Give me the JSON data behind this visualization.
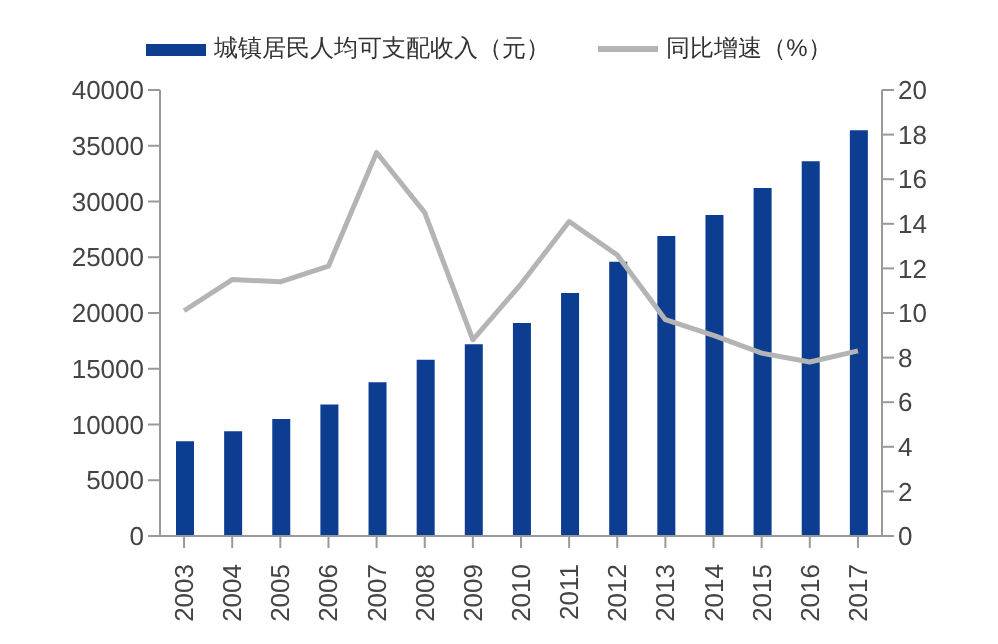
{
  "chart_data": {
    "type": "bar",
    "categories": [
      "2003",
      "2004",
      "2005",
      "2006",
      "2007",
      "2008",
      "2009",
      "2010",
      "2011",
      "2012",
      "2013",
      "2014",
      "2015",
      "2016",
      "2017"
    ],
    "series": [
      {
        "name": "城镇居民人均可支配收入（元）",
        "color": "#0d3d91",
        "values": [
          8500,
          9400,
          10500,
          11800,
          13800,
          15800,
          17200,
          19100,
          21800,
          24600,
          26900,
          28800,
          31200,
          33600,
          36400
        ]
      },
      {
        "name": "同比增速（%）",
        "type": "line",
        "axis": "y2",
        "color": "#b4b4b4",
        "values": [
          10.1,
          11.5,
          11.4,
          12.1,
          17.2,
          14.5,
          8.8,
          11.3,
          14.1,
          12.6,
          9.7,
          9.0,
          8.2,
          7.8,
          8.3
        ]
      }
    ],
    "ylim": [
      0,
      40000
    ],
    "yticks": [
      0,
      5000,
      10000,
      15000,
      20000,
      25000,
      30000,
      35000,
      40000
    ],
    "y2lim": [
      0,
      20
    ],
    "y2ticks": [
      0,
      2,
      4,
      6,
      8,
      10,
      12,
      14,
      16,
      18,
      20
    ],
    "legend": "top",
    "grid": false,
    "marker": "none"
  }
}
